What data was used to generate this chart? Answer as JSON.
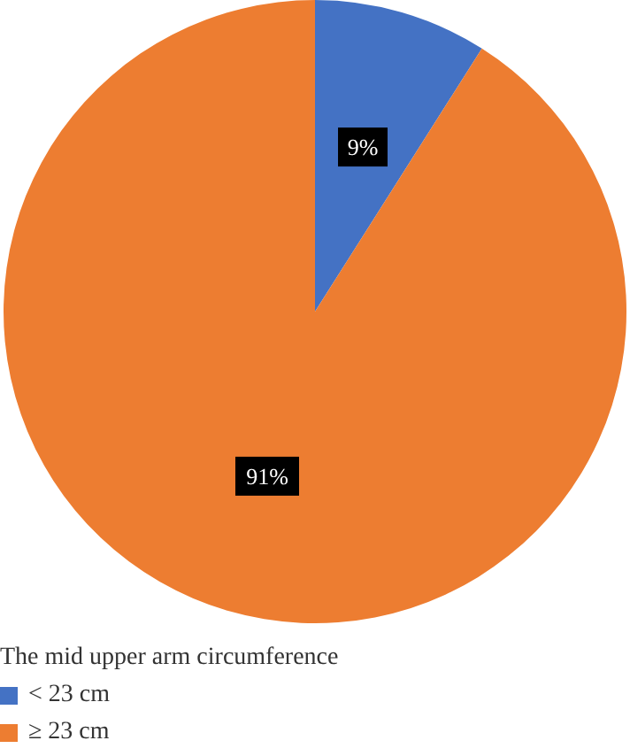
{
  "chart_data": {
    "type": "pie",
    "legend_title": "The mid upper arm circumference",
    "categories": [
      "< 23 cm",
      "≥ 23 cm"
    ],
    "values": [
      9,
      91
    ],
    "colors": [
      "#4472c4",
      "#ed7d31"
    ],
    "value_labels": [
      "9%",
      "91%"
    ],
    "legend": "bottom left"
  }
}
